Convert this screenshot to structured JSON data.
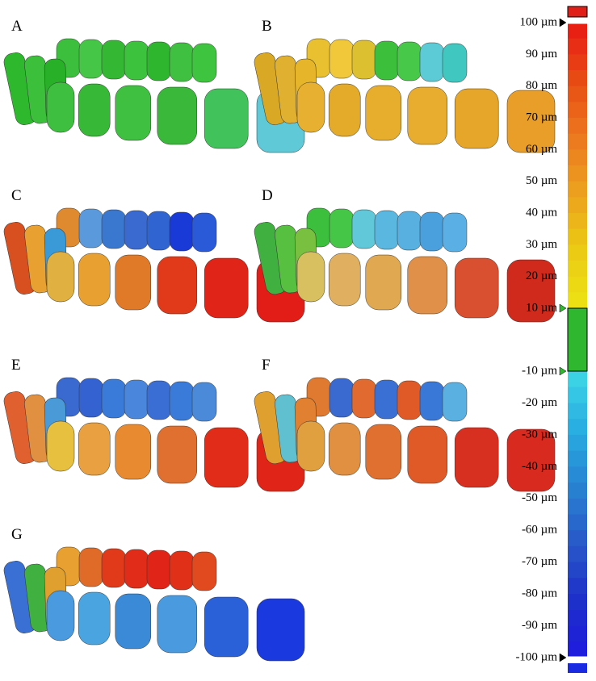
{
  "panels": [
    {
      "label": "A"
    },
    {
      "label": "B"
    },
    {
      "label": "C"
    },
    {
      "label": "D"
    },
    {
      "label": "E"
    },
    {
      "label": "F"
    },
    {
      "label": "G"
    }
  ],
  "color_scale": {
    "labels": [
      "100 µm",
      "90 µm",
      "80 µm",
      "70 µm",
      "60 µm",
      "50 µm",
      "40 µm",
      "30 µm",
      "20 µm",
      "10 µm",
      "-10 µm",
      "-20 µm",
      "-30 µm",
      "-40 µm",
      "-50 µm",
      "-60 µm",
      "-70 µm",
      "-80 µm",
      "-90 µm",
      "-100 µm"
    ]
  }
}
